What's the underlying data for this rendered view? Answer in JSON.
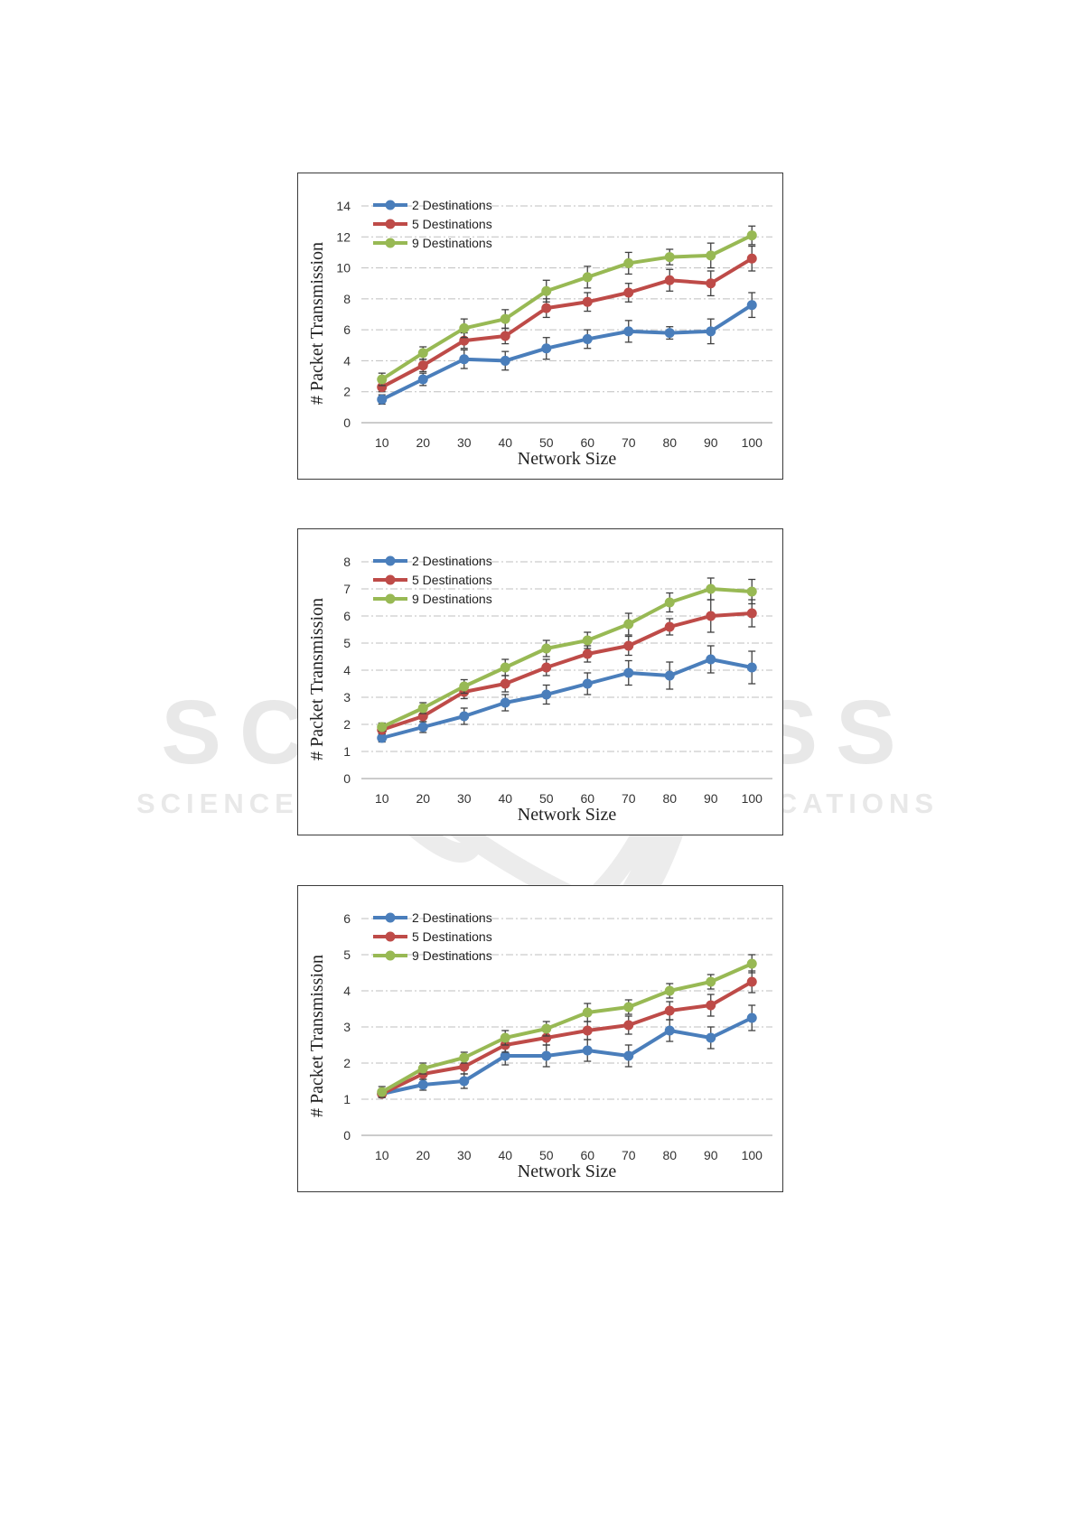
{
  "watermark": {
    "line1": "SCITEPRESS",
    "line2": "SCIENCE AND TECHNOLOGY PUBLICATIONS"
  },
  "colors": {
    "2 Destinations": "#4a7ebb",
    "5 Destinations": "#be4b48",
    "9 Destinations": "#98b954",
    "error_bar": "#404040",
    "grid": "#bfbfbf"
  },
  "chart_data": [
    {
      "type": "line",
      "xlabel": "Network Size",
      "ylabel": "# Packet Transmission",
      "x": [
        10,
        20,
        30,
        40,
        50,
        60,
        70,
        80,
        90,
        100
      ],
      "ylim": [
        0,
        14
      ],
      "yticks": [
        0,
        2,
        4,
        6,
        8,
        10,
        12,
        14
      ],
      "grid": true,
      "legend": "top-left",
      "series": [
        {
          "name": "2 Destinations",
          "values": [
            1.5,
            2.8,
            4.1,
            4.0,
            4.8,
            5.4,
            5.9,
            5.8,
            5.9,
            7.6
          ],
          "err": [
            0.3,
            0.4,
            0.6,
            0.6,
            0.7,
            0.6,
            0.7,
            0.4,
            0.8,
            0.8
          ]
        },
        {
          "name": "5 Destinations",
          "values": [
            2.3,
            3.7,
            5.3,
            5.6,
            7.4,
            7.8,
            8.4,
            9.2,
            9.0,
            10.6
          ],
          "err": [
            0.3,
            0.4,
            0.5,
            0.5,
            0.6,
            0.6,
            0.6,
            0.7,
            0.8,
            0.8
          ]
        },
        {
          "name": "9 Destinations",
          "values": [
            2.8,
            4.5,
            6.1,
            6.7,
            8.5,
            9.4,
            10.3,
            10.7,
            10.8,
            12.1
          ],
          "err": [
            0.4,
            0.4,
            0.6,
            0.6,
            0.7,
            0.7,
            0.7,
            0.5,
            0.8,
            0.6
          ]
        }
      ]
    },
    {
      "type": "line",
      "xlabel": "Network Size",
      "ylabel": "# Packet Transmission",
      "x": [
        10,
        20,
        30,
        40,
        50,
        60,
        70,
        80,
        90,
        100
      ],
      "ylim": [
        0,
        8
      ],
      "yticks": [
        0,
        1,
        2,
        3,
        4,
        5,
        6,
        7,
        8
      ],
      "grid": true,
      "legend": "top-left",
      "series": [
        {
          "name": "2 Destinations",
          "values": [
            1.5,
            1.9,
            2.3,
            2.8,
            3.1,
            3.5,
            3.9,
            3.8,
            4.4,
            4.1
          ],
          "err": [
            0.15,
            0.2,
            0.3,
            0.3,
            0.35,
            0.4,
            0.45,
            0.5,
            0.5,
            0.6
          ]
        },
        {
          "name": "5 Destinations",
          "values": [
            1.8,
            2.3,
            3.2,
            3.5,
            4.1,
            4.6,
            4.9,
            5.6,
            6.0,
            6.1
          ],
          "err": [
            0.15,
            0.2,
            0.25,
            0.3,
            0.3,
            0.3,
            0.35,
            0.3,
            0.6,
            0.5
          ]
        },
        {
          "name": "9 Destinations",
          "values": [
            1.9,
            2.6,
            3.4,
            4.1,
            4.8,
            5.1,
            5.7,
            6.5,
            7.0,
            6.9
          ],
          "err": [
            0.15,
            0.2,
            0.25,
            0.3,
            0.3,
            0.3,
            0.4,
            0.35,
            0.4,
            0.45
          ]
        }
      ]
    },
    {
      "type": "line",
      "xlabel": "Network Size",
      "ylabel": "# Packet Transmission",
      "x": [
        10,
        20,
        30,
        40,
        50,
        60,
        70,
        80,
        90,
        100
      ],
      "ylim": [
        0,
        6
      ],
      "yticks": [
        0,
        1,
        2,
        3,
        4,
        5,
        6
      ],
      "grid": true,
      "legend": "top-left",
      "series": [
        {
          "name": "2 Destinations",
          "values": [
            1.15,
            1.4,
            1.5,
            2.2,
            2.2,
            2.35,
            2.2,
            2.9,
            2.7,
            3.25
          ],
          "err": [
            0.1,
            0.15,
            0.2,
            0.25,
            0.3,
            0.3,
            0.3,
            0.3,
            0.3,
            0.35
          ]
        },
        {
          "name": "5 Destinations",
          "values": [
            1.15,
            1.7,
            1.9,
            2.5,
            2.7,
            2.9,
            3.05,
            3.45,
            3.6,
            4.25
          ],
          "err": [
            0.1,
            0.15,
            0.2,
            0.2,
            0.2,
            0.25,
            0.25,
            0.25,
            0.3,
            0.3
          ]
        },
        {
          "name": "9 Destinations",
          "values": [
            1.2,
            1.85,
            2.15,
            2.7,
            2.95,
            3.4,
            3.55,
            4.0,
            4.25,
            4.75
          ],
          "err": [
            0.15,
            0.15,
            0.15,
            0.2,
            0.2,
            0.25,
            0.2,
            0.2,
            0.2,
            0.25
          ]
        }
      ]
    }
  ]
}
